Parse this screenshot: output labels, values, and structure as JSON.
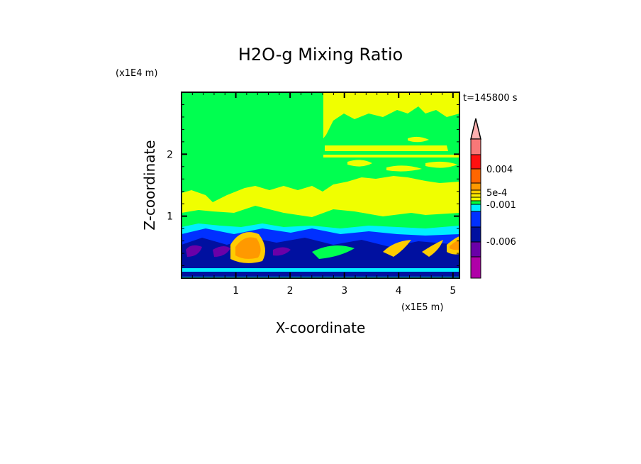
{
  "chart_data": {
    "type": "heatmap",
    "subtype": "filled-contour",
    "title": "H2O-g Mixing Ratio",
    "xlabel": "X-coordinate",
    "ylabel": "Z-coordinate",
    "x_unit": "(x1E5 m)",
    "y_unit": "(x1E4 m)",
    "time_label": "t=145800 s",
    "xlim": [
      0,
      5.12
    ],
    "ylim": [
      0,
      3.0
    ],
    "x_ticks": [
      "1",
      "2",
      "3",
      "4",
      "5"
    ],
    "y_ticks": [
      "1",
      "2"
    ],
    "colorbar": {
      "labels": [
        "0.004",
        "5e-4",
        "-0.001",
        "-0.006"
      ],
      "extend": "max",
      "colors_top_to_bottom": [
        "#f87878",
        "#ff1010",
        "#ff6600",
        "#ff9900",
        "#ffcc00",
        "#ffee00",
        "#f0ff00",
        "#00ff40",
        "#00eeff",
        "#0030ff",
        "#0010a0",
        "#6a00a8",
        "#b000a8",
        "#ee00aa"
      ],
      "extend_color": "#ffb0b0"
    },
    "field_colors": {
      "background": "#00ff50",
      "yellow": "#f0ff00",
      "cyan": "#00eeff",
      "blue": "#0030ff",
      "darkblue": "#0010a0",
      "purple": "#6a00a8",
      "orange": "#ff9900",
      "gold": "#ffcc00"
    }
  }
}
